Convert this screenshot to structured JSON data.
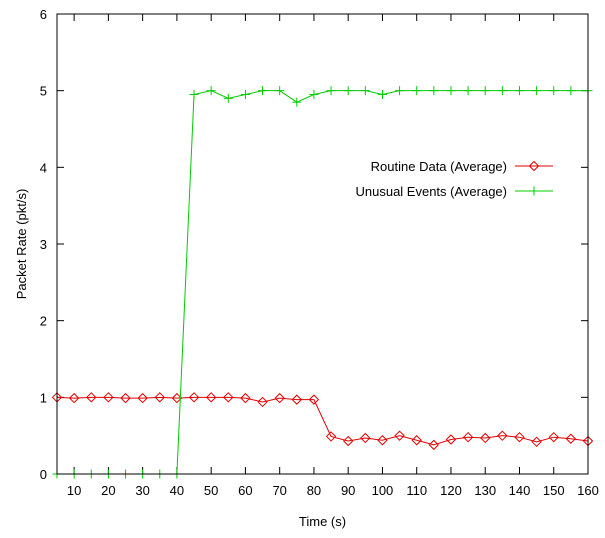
{
  "chart_data": {
    "type": "line",
    "xlabel": "Time (s)",
    "ylabel": "Packet Rate (pkt/s)",
    "xlim": [
      5,
      160
    ],
    "ylim": [
      0,
      6
    ],
    "xticks": [
      10,
      20,
      30,
      40,
      50,
      60,
      70,
      80,
      90,
      100,
      110,
      120,
      130,
      140,
      150,
      160
    ],
    "yticks": [
      0,
      1,
      2,
      3,
      4,
      5,
      6
    ],
    "grid": false,
    "legend_position": "right",
    "series": [
      {
        "name": "Routine Data (Average)",
        "color": "#e00000",
        "marker": "diamond",
        "x": [
          5,
          10,
          15,
          20,
          25,
          30,
          35,
          40,
          45,
          50,
          55,
          60,
          65,
          70,
          75,
          80,
          85,
          90,
          95,
          100,
          105,
          110,
          115,
          120,
          125,
          130,
          135,
          140,
          145,
          150,
          155,
          160
        ],
        "y": [
          1.0,
          0.99,
          1.0,
          1.0,
          0.99,
          0.99,
          1.0,
          0.99,
          1.0,
          1.0,
          1.0,
          0.99,
          0.94,
          0.99,
          0.97,
          0.97,
          0.49,
          0.43,
          0.47,
          0.44,
          0.5,
          0.44,
          0.38,
          0.45,
          0.48,
          0.47,
          0.5,
          0.48,
          0.42,
          0.48,
          0.46,
          0.43
        ]
      },
      {
        "name": "Unusual Events (Average)",
        "color": "#00cc00",
        "marker": "plus",
        "x": [
          5,
          10,
          15,
          20,
          25,
          30,
          35,
          40,
          45,
          50,
          55,
          60,
          65,
          70,
          75,
          80,
          85,
          90,
          95,
          100,
          105,
          110,
          115,
          120,
          125,
          130,
          135,
          140,
          145,
          150,
          155,
          160
        ],
        "y": [
          0,
          0,
          0,
          0,
          0,
          0,
          0,
          0,
          4.95,
          5.0,
          4.9,
          4.95,
          5.0,
          5.0,
          4.85,
          4.95,
          5.0,
          5.0,
          5.0,
          4.95,
          5.0,
          5.0,
          5.0,
          5.0,
          5.0,
          5.0,
          5.0,
          5.0,
          5.0,
          5.0,
          5.0,
          5.0
        ]
      }
    ]
  }
}
